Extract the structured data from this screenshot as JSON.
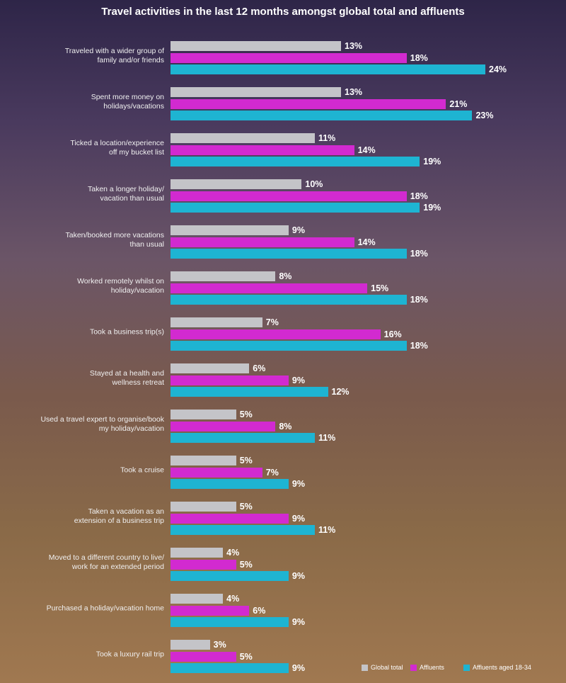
{
  "chart_data": {
    "type": "bar",
    "orientation": "horizontal",
    "title": "Travel activities in the last 12 months amongst global total and affluents",
    "categories": [
      "Traveled with a wider group of\nfamily and/or friends",
      "Spent more money on\nholidays/vacations",
      "Ticked a location/experience\noff my bucket list",
      "Taken a longer holiday/\nvacation than usual",
      "Taken/booked more vacations\nthan usual",
      "Worked remotely whilst on\nholiday/vacation",
      "Took a business trip(s)",
      "Stayed at a health and\nwellness retreat",
      "Used a travel expert to organise/book\nmy holiday/vacation",
      "Took a cruise",
      "Taken a vacation as an\nextension of a business trip",
      "Moved to a different country to live/\nwork for an extended period",
      "Purchased a holiday/vacation home",
      "Took a luxury rail trip"
    ],
    "series": [
      {
        "name": "Global total",
        "color": "#c4c4c8",
        "values": [
          13,
          13,
          11,
          10,
          9,
          8,
          7,
          6,
          5,
          5,
          5,
          4,
          4,
          3
        ],
        "value_labels": [
          "13%",
          "13%",
          "11%",
          "10%",
          "9%",
          "8%",
          "7%",
          "6%",
          "5%",
          "5%",
          "5%",
          "4%",
          "4%",
          "3%"
        ]
      },
      {
        "name": "Affluents",
        "color": "#d22ad0",
        "values": [
          18,
          21,
          14,
          18,
          14,
          15,
          16,
          9,
          8,
          7,
          9,
          5,
          6,
          5
        ],
        "value_labels": [
          "18%",
          "21%",
          "14%",
          "18%",
          "14%",
          "15%",
          "16%",
          "9%",
          "8%",
          "7%",
          "9%",
          "5%",
          "6%",
          "5%"
        ]
      },
      {
        "name": "Affluents aged 18-34",
        "color": "#1eb4d2",
        "values": [
          24,
          23,
          19,
          19,
          18,
          18,
          18,
          12,
          11,
          9,
          11,
          9,
          9,
          9
        ],
        "value_labels": [
          "24%",
          "23%",
          "19%",
          "19%",
          "18%",
          "18%",
          "18%",
          "12%",
          "11%",
          "9%",
          "11%",
          "9%",
          "9%",
          "9%"
        ]
      }
    ],
    "legend": "bottom-right"
  }
}
